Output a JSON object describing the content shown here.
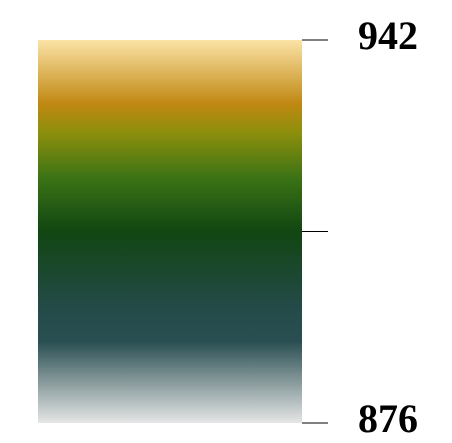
{
  "chart_data": {
    "type": "heatmap",
    "orientation": "vertical",
    "range": [
      876,
      942
    ],
    "ticks": [
      {
        "value": 942,
        "label": "942"
      },
      {
        "value": 909,
        "label": ""
      },
      {
        "value": 876,
        "label": "876"
      }
    ],
    "colormap": [
      {
        "value": 942,
        "color": "#fbe3a6"
      },
      {
        "value": 931,
        "color": "#c08812"
      },
      {
        "value": 926,
        "color": "#8c8f0c"
      },
      {
        "value": 918,
        "color": "#3a7215"
      },
      {
        "value": 909,
        "color": "#114612"
      },
      {
        "value": 896,
        "color": "#244a48"
      },
      {
        "value": 890,
        "color": "#2a4f52"
      },
      {
        "value": 876,
        "color": "#e6e6e6"
      }
    ]
  }
}
